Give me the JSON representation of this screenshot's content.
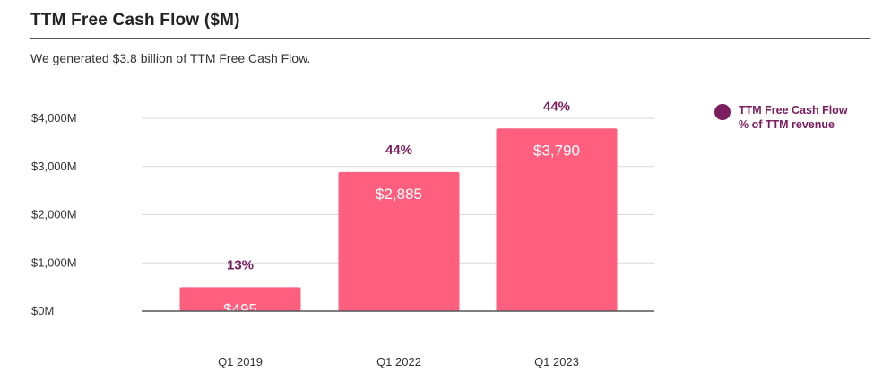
{
  "header": {
    "title": "TTM Free Cash Flow ($M)",
    "subtitle": "We generated $3.8 billion of TTM Free Cash Flow."
  },
  "legend": {
    "line1": "TTM Free Cash Flow",
    "line2": "% of TTM revenue"
  },
  "colors": {
    "bar": "#ff5f7e",
    "accent": "#7b1d5e",
    "grid": "#d9d9d9",
    "axis": "#555555"
  },
  "chart_data": {
    "type": "bar",
    "categories": [
      "Q1 2019",
      "Q1 2022",
      "Q1 2023"
    ],
    "series": [
      {
        "name": "TTM Free Cash Flow",
        "values": [
          495,
          2885,
          3790
        ],
        "value_labels": [
          "$495",
          "$2,885",
          "$3,790"
        ]
      },
      {
        "name": "% of TTM revenue",
        "values": [
          13,
          44,
          44
        ],
        "value_labels": [
          "13%",
          "44%",
          "44%"
        ]
      }
    ],
    "yticks": [
      0,
      1000,
      2000,
      3000,
      4000
    ],
    "ytick_labels": [
      "$0M",
      "$1,000M",
      "$2,000M",
      "$3,000M",
      "$4,000M"
    ],
    "ylim": [
      0,
      4000
    ],
    "grid": true,
    "legend_position": "top-right"
  }
}
